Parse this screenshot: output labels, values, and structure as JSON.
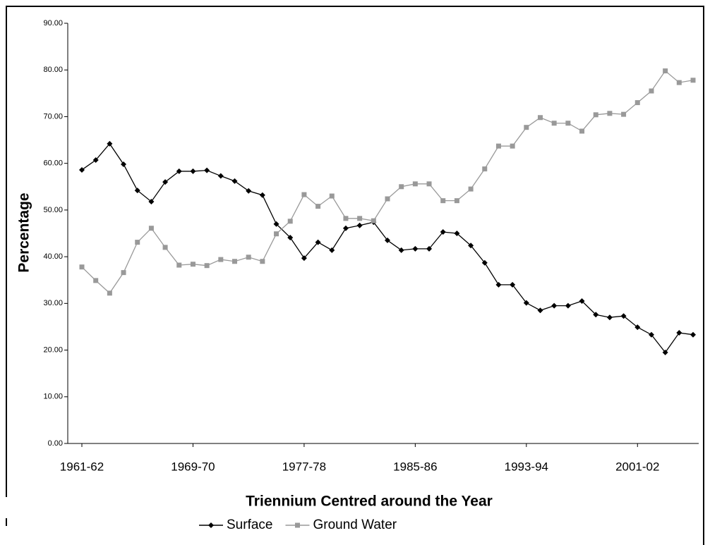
{
  "chart_data": {
    "type": "line",
    "x_label": "Triennium Centred around the Year",
    "y_label": "Percentage",
    "categories": [
      "1961-62",
      null,
      null,
      null,
      null,
      null,
      null,
      null,
      "1969-70",
      null,
      null,
      null,
      null,
      null,
      null,
      null,
      "1977-78",
      null,
      null,
      null,
      null,
      null,
      null,
      null,
      "1985-86",
      null,
      null,
      null,
      null,
      null,
      null,
      null,
      "1993-94",
      null,
      null,
      null,
      null,
      null,
      null,
      null,
      "2001-02",
      null,
      null,
      null,
      null
    ],
    "series": [
      {
        "name": "Surface",
        "color": "#000000",
        "marker": "diamond",
        "values": [
          58.6,
          60.7,
          64.2,
          59.8,
          54.2,
          51.8,
          56.0,
          58.3,
          58.3,
          58.5,
          57.3,
          56.2,
          54.1,
          53.2,
          47.0,
          44.1,
          39.7,
          43.1,
          41.4,
          46.1,
          46.7,
          47.4,
          43.5,
          41.4,
          41.7,
          41.7,
          45.3,
          45.0,
          42.4,
          38.7,
          34.0,
          34.0,
          30.1,
          28.5,
          29.5,
          29.5,
          30.5,
          27.6,
          27.0,
          27.3,
          24.9,
          23.3,
          19.5,
          23.7,
          23.3
        ]
      },
      {
        "name": "Ground Water",
        "color": "#999999",
        "marker": "square",
        "values": [
          37.8,
          34.9,
          32.2,
          36.6,
          43.1,
          46.1,
          42.0,
          38.2,
          38.4,
          38.1,
          39.4,
          39.0,
          39.9,
          39.0,
          44.9,
          47.6,
          53.3,
          50.8,
          53.0,
          48.2,
          48.2,
          47.7,
          52.4,
          55.0,
          55.6,
          55.6,
          52.0,
          52.0,
          54.5,
          58.8,
          63.7,
          63.7,
          67.7,
          69.8,
          68.6,
          68.6,
          66.9,
          70.4,
          70.7,
          70.5,
          73.0,
          75.5,
          79.8,
          77.3,
          77.8
        ]
      }
    ],
    "ylim": [
      0,
      90
    ],
    "yticks": [
      {
        "value": 0,
        "label": "0.00"
      },
      {
        "value": 10,
        "label": "10.00"
      },
      {
        "value": 20,
        "label": "20.00"
      },
      {
        "value": 30,
        "label": "30.00"
      },
      {
        "value": 40,
        "label": "40.00"
      },
      {
        "value": 50,
        "label": "50.00"
      },
      {
        "value": 60,
        "label": "60.00"
      },
      {
        "value": 70,
        "label": "70.00"
      },
      {
        "value": 80,
        "label": "80.00"
      },
      {
        "value": 90,
        "label": "90.00"
      }
    ],
    "grid": false,
    "legend": "bottom"
  }
}
